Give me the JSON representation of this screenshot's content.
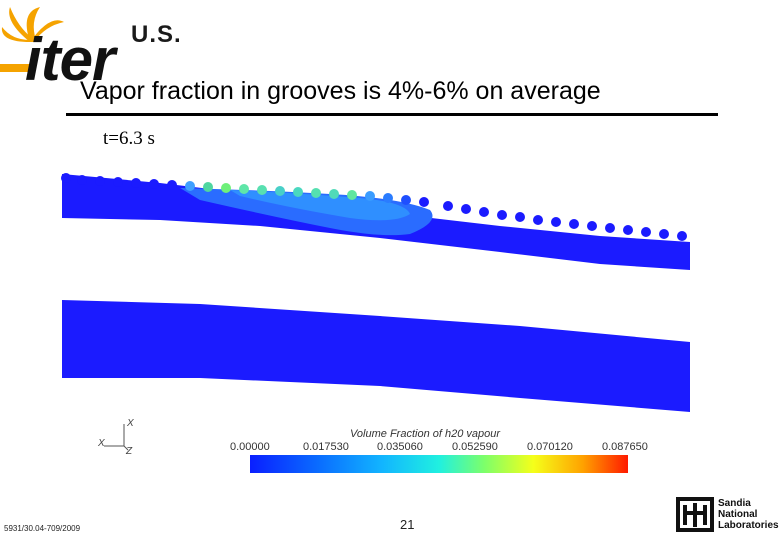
{
  "logo": {
    "us": "U.S.",
    "iter": "iter"
  },
  "title": "Vapor fraction in grooves is 4%-6% on average",
  "time_label": "t=6.3 s",
  "axes": {
    "x1": "X",
    "x2": "X",
    "z": "Z"
  },
  "colorbar": {
    "title": "Volume Fraction of h20 vapour",
    "ticks": [
      "0.00000",
      "0.017530",
      "0.035060",
      "0.052590",
      "0.070120",
      "0.087650"
    ]
  },
  "footer": {
    "left": "5931/30.04-709/2009",
    "page": "21"
  },
  "sandia": {
    "line1": "Sandia",
    "line2": "National",
    "line3": "Laboratories"
  },
  "colors": {
    "domain_blue": "#1b1bff",
    "vapor_light": "#2a8cff",
    "vapor_hot": "#5fff8a"
  }
}
